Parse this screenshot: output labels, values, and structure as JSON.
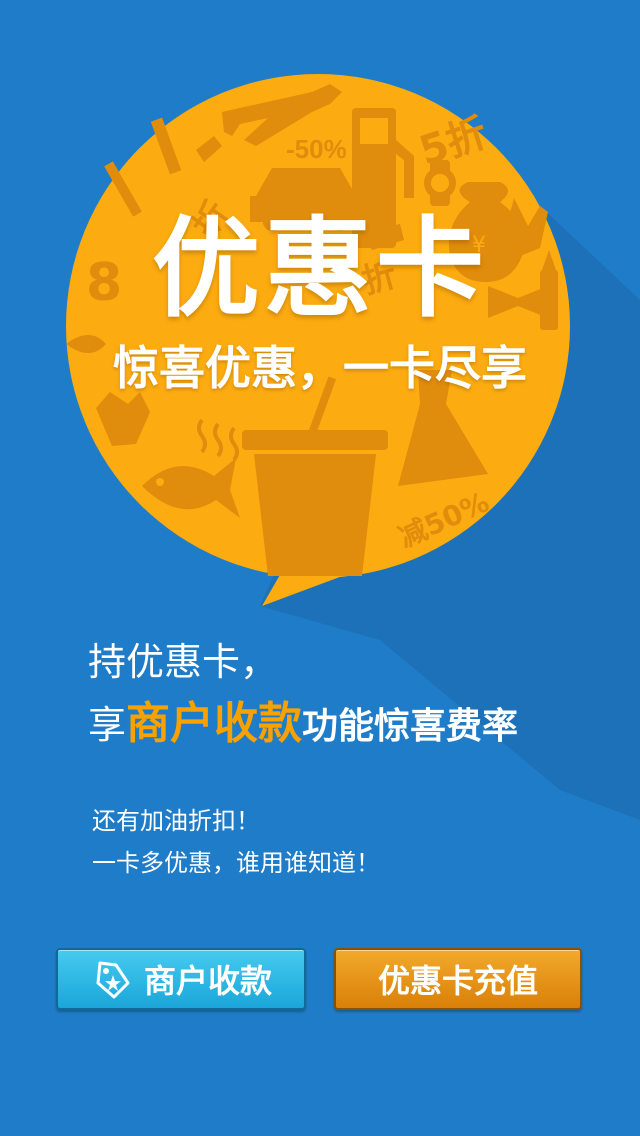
{
  "hero": {
    "title": "优惠卡",
    "subtitle": "惊喜优惠，一卡尽享"
  },
  "decor": {
    "discount_neg50": "-50%",
    "discount_5zhe": "5折",
    "discount_zhe": "折",
    "discount_8": "8",
    "discount_jian50": "减50%",
    "yuan_symbol": "¥"
  },
  "promo": {
    "line1": "持优惠卡，",
    "line2_lead": "享",
    "line2_highlight": "商户收款",
    "line2_tail": "功能惊喜费率"
  },
  "extra": {
    "line1": "还有加油折扣！",
    "line2": "一卡多优惠，谁用谁知道！"
  },
  "buttons": {
    "merchant_label": "商户收款",
    "recharge_label": "优惠卡充值"
  },
  "colors": {
    "background": "#1f7cc8",
    "bubble": "#fcac11",
    "bubble_icons": "#e08c0c",
    "highlight": "#f8a100",
    "button_blue": "#1aa6d9",
    "button_orange": "#d98008"
  },
  "icons": [
    "airplane-icon",
    "car-icon",
    "fuel-pump-icon",
    "watch-icon",
    "money-bag-icon",
    "glove-icon",
    "lipstick-icon",
    "bow-tie-icon",
    "fish-icon",
    "cup-icon",
    "dress-icon",
    "tag-star-icon"
  ]
}
